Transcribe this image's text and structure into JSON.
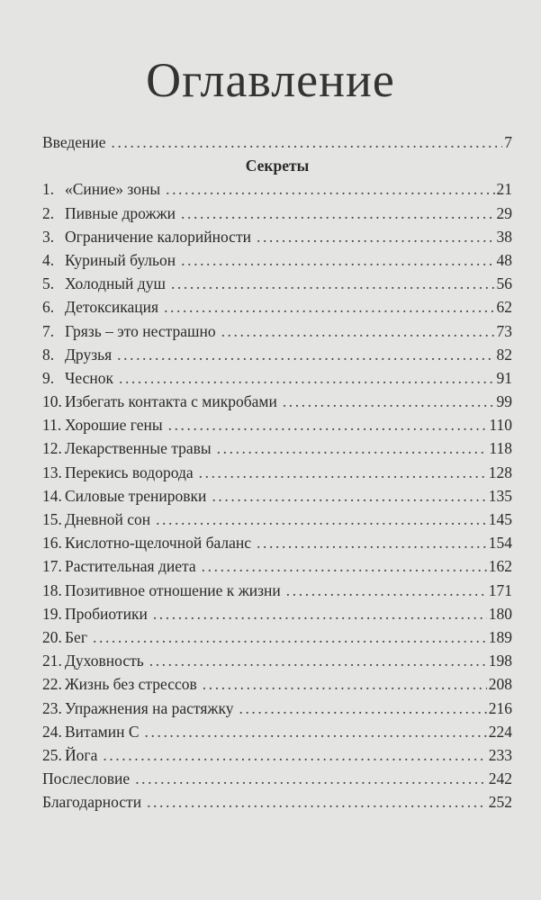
{
  "title": "Оглавление",
  "intro": {
    "label": "Введение",
    "page": "7"
  },
  "section": "Секреты",
  "items": [
    {
      "num": "1.",
      "label": "«Синие» зоны",
      "page": "21"
    },
    {
      "num": "2.",
      "label": "Пивные дрожжи",
      "page": "29"
    },
    {
      "num": "3.",
      "label": "Ограничение калорийности",
      "page": "38"
    },
    {
      "num": "4.",
      "label": "Куриный бульон",
      "page": "48"
    },
    {
      "num": "5.",
      "label": "Холодный душ",
      "page": "56"
    },
    {
      "num": "6.",
      "label": "Детоксикация",
      "page": "62"
    },
    {
      "num": "7.",
      "label": "Грязь – это нестрашно",
      "page": "73"
    },
    {
      "num": "8.",
      "label": "Друзья",
      "page": "82"
    },
    {
      "num": "9.",
      "label": "Чеснок",
      "page": "91"
    },
    {
      "num": "10.",
      "label": "Избегать контакта с микробами",
      "page": "99"
    },
    {
      "num": "11.",
      "label": "Хорошие гены",
      "page": "110"
    },
    {
      "num": "12.",
      "label": "Лекарственные травы",
      "page": "118"
    },
    {
      "num": "13.",
      "label": "Перекись водорода",
      "page": "128"
    },
    {
      "num": "14.",
      "label": "Силовые тренировки",
      "page": "135"
    },
    {
      "num": "15.",
      "label": "Дневной сон",
      "page": "145"
    },
    {
      "num": "16.",
      "label": "Кислотно-щелочной баланс",
      "page": "154"
    },
    {
      "num": "17.",
      "label": "Растительная диета",
      "page": "162"
    },
    {
      "num": "18.",
      "label": "Позитивное отношение к жизни",
      "page": "171"
    },
    {
      "num": "19.",
      "label": "Пробиотики",
      "page": "180"
    },
    {
      "num": "20.",
      "label": "Бег",
      "page": "189"
    },
    {
      "num": "21.",
      "label": "Духовность",
      "page": "198"
    },
    {
      "num": "22.",
      "label": "Жизнь без стрессов",
      "page": "208"
    },
    {
      "num": "23.",
      "label": "Упражнения на растяжку",
      "page": "216"
    },
    {
      "num": "24.",
      "label": "Витамин С",
      "page": "224"
    },
    {
      "num": "25.",
      "label": "Йога",
      "page": "233"
    }
  ],
  "back": [
    {
      "label": "Послесловие",
      "page": "242"
    },
    {
      "label": "Благодарности",
      "page": "252"
    }
  ]
}
